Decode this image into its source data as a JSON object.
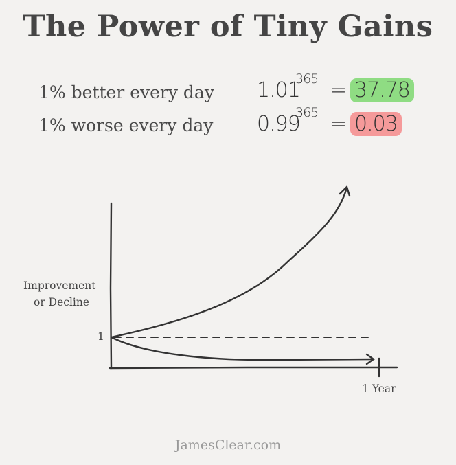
{
  "title": "The Power of Tiny Gains",
  "rows": [
    {
      "label": "1% better every day",
      "base": "1.01",
      "exponent": "365",
      "equals": "=",
      "result": "37.78",
      "highlight": "#8fdc83"
    },
    {
      "label": "1% worse every day",
      "base": "0.99",
      "exponent": "365",
      "equals": "=",
      "result": "0.03",
      "highlight": "#f59a9a"
    }
  ],
  "chart_data": {
    "type": "line",
    "title": "",
    "ylabel": "Improvement or Decline",
    "ylabel_lines": [
      "Improvement",
      "or Decline"
    ],
    "xlabel": "",
    "y_tick_labels": [
      "1"
    ],
    "x_tick_labels": [
      "1 Year"
    ],
    "baseline": 1,
    "series": [
      {
        "x": [
          0,
          365
        ],
        "y": [
          1,
          37.78
        ],
        "style": "solid-arrow"
      },
      {
        "x": [
          0,
          365
        ],
        "y": [
          1,
          0.03
        ],
        "style": "solid-arrow"
      },
      {
        "x": [
          0,
          365
        ],
        "y": [
          1,
          1
        ],
        "style": "dashed"
      }
    ],
    "grid": false
  },
  "footer": "JamesClear.com"
}
